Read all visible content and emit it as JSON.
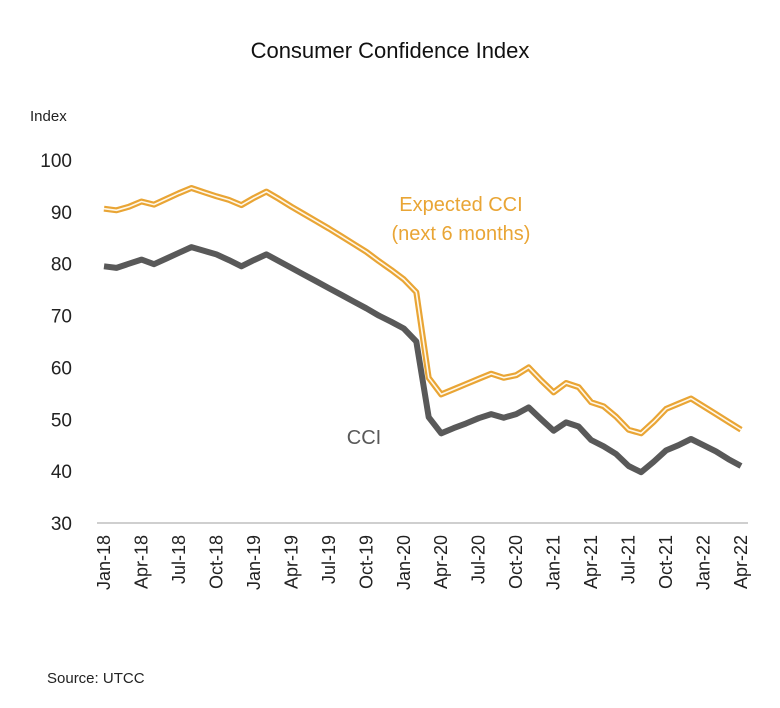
{
  "chart_data": {
    "type": "line",
    "title": "Consumer Confidence Index",
    "ylabel": "Index",
    "xlabel": "",
    "ylim": [
      30,
      100
    ],
    "yticks": [
      30,
      40,
      50,
      60,
      70,
      80,
      90,
      100
    ],
    "grid": false,
    "x_tick_labels": [
      "Jan-18",
      "Apr-18",
      "Jul-18",
      "Oct-18",
      "Jan-19",
      "Apr-19",
      "Jul-19",
      "Oct-19",
      "Jan-20",
      "Apr-20",
      "Jul-20",
      "Oct-20",
      "Jan-21",
      "Apr-21",
      "Jul-21",
      "Oct-21",
      "Jan-22",
      "Apr-22"
    ],
    "x": [
      "Jan-18",
      "Feb-18",
      "Mar-18",
      "Apr-18",
      "May-18",
      "Jun-18",
      "Jul-18",
      "Aug-18",
      "Sep-18",
      "Oct-18",
      "Nov-18",
      "Dec-18",
      "Jan-19",
      "Feb-19",
      "Mar-19",
      "Apr-19",
      "May-19",
      "Jun-19",
      "Jul-19",
      "Aug-19",
      "Sep-19",
      "Oct-19",
      "Nov-19",
      "Dec-19",
      "Jan-20",
      "Feb-20",
      "Mar-20",
      "Apr-20",
      "May-20",
      "Jun-20",
      "Jul-20",
      "Aug-20",
      "Sep-20",
      "Oct-20",
      "Nov-20",
      "Dec-20",
      "Jan-21",
      "Feb-21",
      "Mar-21",
      "Apr-21",
      "May-21",
      "Jun-21",
      "Jul-21",
      "Aug-21",
      "Sep-21",
      "Oct-21",
      "Nov-21",
      "Dec-21",
      "Jan-22",
      "Feb-22",
      "Mar-22",
      "Apr-22"
    ],
    "series": [
      {
        "name": "Expected CCI (next 6 months)",
        "label_lines": [
          "Expected CCI",
          "(next 6 months)"
        ],
        "color": "#E9A535",
        "values": [
          90.6,
          90.3,
          91.0,
          92.0,
          91.4,
          92.5,
          93.6,
          94.6,
          93.8,
          93.0,
          92.3,
          91.3,
          92.7,
          93.9,
          92.5,
          91.0,
          89.6,
          88.2,
          86.8,
          85.3,
          83.8,
          82.3,
          80.5,
          78.8,
          77.0,
          74.5,
          58.0,
          54.8,
          55.8,
          56.8,
          57.8,
          58.8,
          58.0,
          58.5,
          60.0,
          57.5,
          55.2,
          57.0,
          56.2,
          53.3,
          52.5,
          50.5,
          48.0,
          47.3,
          49.5,
          52.0,
          53.0,
          54.0,
          52.5,
          51.0,
          49.5,
          48.0
        ]
      },
      {
        "name": "CCI",
        "label_lines": [
          "CCI"
        ],
        "color": "#595959",
        "values": [
          79.5,
          79.2,
          80.0,
          80.8,
          79.9,
          81.0,
          82.1,
          83.2,
          82.5,
          81.8,
          80.7,
          79.5,
          80.7,
          81.8,
          80.5,
          79.2,
          77.9,
          76.6,
          75.3,
          74.0,
          72.7,
          71.4,
          70.0,
          68.8,
          67.5,
          65.0,
          50.4,
          47.3,
          48.3,
          49.2,
          50.2,
          51.0,
          50.3,
          51.0,
          52.3,
          50.0,
          47.8,
          49.4,
          48.6,
          46.0,
          44.8,
          43.3,
          41.0,
          39.8,
          41.8,
          44.0,
          45.0,
          46.2,
          45.0,
          43.8,
          42.3,
          41.0
        ]
      }
    ],
    "source": "Source: UTCC"
  }
}
